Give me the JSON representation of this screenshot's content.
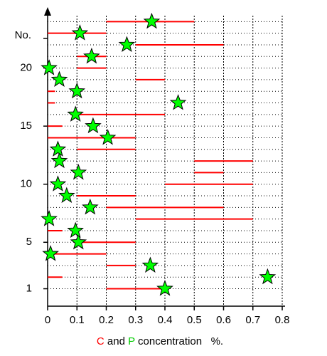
{
  "chart_data": {
    "type": "range-scatter",
    "ylabel": "No.",
    "y": [
      1,
      2,
      3,
      4,
      5,
      6,
      7,
      8,
      9,
      10,
      11,
      12,
      13,
      14,
      15,
      16,
      17,
      18,
      19,
      20,
      21,
      22,
      23,
      24
    ],
    "series": [
      {
        "name": "C",
        "color": "#ff0000",
        "low": [
          0.2,
          0,
          0.2,
          0,
          0.1,
          0,
          0.3,
          0.2,
          0.1,
          0.4,
          0.5,
          0.5,
          0.1,
          0,
          0,
          0.1,
          0,
          0,
          0.3,
          0.1,
          0.1,
          0.3,
          0,
          0.2
        ],
        "high": [
          0.4,
          0.05,
          0.3,
          0.2,
          0.3,
          0.05,
          0.7,
          0.6,
          0.3,
          0.7,
          0.6,
          0.7,
          0.3,
          0.3,
          0.05,
          0.4,
          0.025,
          0.025,
          0.4,
          0.2,
          0.2,
          0.6,
          0.2,
          0.5
        ]
      },
      {
        "name": "P",
        "color": "#00ff00",
        "values": [
          0.4,
          0.75,
          0.35,
          0.01,
          0.105,
          0.095,
          0.005,
          0.145,
          0.065,
          0.035,
          0.105,
          0.04,
          0.035,
          0.205,
          0.155,
          0.095,
          0.445,
          0.1,
          0.04,
          0.005,
          0.15,
          0.27,
          0.11,
          0.355
        ]
      }
    ],
    "xlabel_parts": [
      " and ",
      " concentration   %."
    ],
    "xlim": [
      0,
      0.8
    ],
    "xticks": [
      0,
      0.1,
      0.2,
      0.3,
      0.4,
      0.5,
      0.6,
      0.7,
      0.8
    ],
    "ylim": [
      -0.5,
      25
    ],
    "yticks": [
      1,
      5,
      10,
      15,
      20
    ],
    "grid": true
  }
}
